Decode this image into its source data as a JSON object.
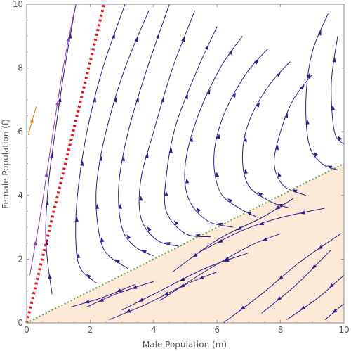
{
  "chart_data": {
    "type": "streamplot",
    "xlabel": "Male Population (m)",
    "ylabel": "Female Population (f)",
    "xlim": [
      0,
      10
    ],
    "ylim": [
      0,
      10
    ],
    "xticks": [
      "0",
      "2",
      "4",
      "6",
      "8",
      "10"
    ],
    "yticks": [
      "0",
      "2",
      "4",
      "6",
      "8",
      "10"
    ],
    "shaded_region": {
      "description_boundary": "f = 0.5 m",
      "fill_color": "#fde9d8"
    },
    "reference_lines": [
      {
        "style": "dotted",
        "color": "#e8141b",
        "slope": 4.1,
        "intercept": 0
      },
      {
        "style": "dotted",
        "color": "#5aa63a",
        "slope": 0.5,
        "intercept": 0
      }
    ],
    "stream_color": "#2b1e8c",
    "highlight_stream_colors": [
      "#8e44ad",
      "#e07b17"
    ],
    "streamlines_upper": [
      [
        [
          1.55,
          10.0
        ],
        [
          1.2,
          8.0
        ],
        [
          0.9,
          6.0
        ],
        [
          0.7,
          4.5
        ],
        [
          0.6,
          3.0
        ],
        [
          0.65,
          2.0
        ],
        [
          0.8,
          0.9
        ]
      ],
      [
        [
          3.1,
          10.0
        ],
        [
          2.4,
          8.0
        ],
        [
          1.9,
          6.0
        ],
        [
          1.6,
          4.0
        ],
        [
          1.55,
          2.5
        ],
        [
          1.7,
          1.7
        ],
        [
          2.2,
          1.25
        ]
      ],
      [
        [
          3.85,
          9.8
        ],
        [
          3.1,
          8.0
        ],
        [
          2.5,
          6.0
        ],
        [
          2.2,
          4.3
        ],
        [
          2.25,
          3.0
        ],
        [
          2.5,
          2.2
        ],
        [
          3.2,
          1.7
        ]
      ],
      [
        [
          4.5,
          10.0
        ],
        [
          3.8,
          8.0
        ],
        [
          3.2,
          6.0
        ],
        [
          2.9,
          4.3
        ],
        [
          3.0,
          3.0
        ],
        [
          3.4,
          2.4
        ],
        [
          4.0,
          2.1
        ]
      ],
      [
        [
          5.3,
          9.8
        ],
        [
          4.6,
          8.0
        ],
        [
          4.0,
          6.0
        ],
        [
          3.6,
          4.5
        ],
        [
          3.6,
          3.3
        ],
        [
          4.1,
          2.6
        ],
        [
          4.8,
          2.4
        ]
      ],
      [
        [
          6.0,
          9.3
        ],
        [
          5.4,
          8.0
        ],
        [
          4.7,
          6.2
        ],
        [
          4.4,
          4.6
        ],
        [
          4.4,
          3.5
        ],
        [
          5.0,
          2.8
        ],
        [
          5.8,
          2.7
        ]
      ],
      [
        [
          6.8,
          9.0
        ],
        [
          6.1,
          8.0
        ],
        [
          5.4,
          6.5
        ],
        [
          5.0,
          5.0
        ],
        [
          5.1,
          3.9
        ],
        [
          5.7,
          3.2
        ],
        [
          6.5,
          3.0
        ]
      ],
      [
        [
          7.6,
          8.6
        ],
        [
          6.9,
          7.8
        ],
        [
          6.2,
          6.5
        ],
        [
          5.9,
          5.2
        ],
        [
          6.1,
          4.1
        ],
        [
          6.7,
          3.6
        ],
        [
          7.3,
          3.3
        ]
      ],
      [
        [
          8.3,
          8.2
        ],
        [
          7.6,
          7.4
        ],
        [
          7.0,
          6.3
        ],
        [
          6.8,
          5.2
        ],
        [
          7.0,
          4.3
        ],
        [
          7.7,
          3.8
        ],
        [
          8.3,
          3.6
        ]
      ],
      [
        [
          9.0,
          7.8
        ],
        [
          8.4,
          7.0
        ],
        [
          8.0,
          6.0
        ],
        [
          7.8,
          5.0
        ],
        [
          8.1,
          4.3
        ],
        [
          8.8,
          4.0
        ]
      ],
      [
        [
          9.5,
          9.7
        ],
        [
          9.0,
          8.5
        ],
        [
          8.8,
          7.0
        ],
        [
          8.9,
          5.6
        ],
        [
          9.3,
          5.0
        ],
        [
          9.8,
          4.8
        ]
      ],
      [
        [
          9.8,
          9.0
        ],
        [
          9.6,
          7.5
        ],
        [
          9.7,
          6.0
        ],
        [
          10.0,
          5.6
        ]
      ]
    ],
    "streamlines_lower": [
      [
        [
          1.9,
          0.5
        ],
        [
          2.8,
          0.9
        ],
        [
          4.0,
          1.3
        ]
      ],
      [
        [
          2.6,
          0.1
        ],
        [
          3.8,
          0.6
        ],
        [
          5.0,
          1.2
        ],
        [
          6.0,
          1.6
        ]
      ],
      [
        [
          3.0,
          0.4
        ],
        [
          4.2,
          1.0
        ],
        [
          5.6,
          1.7
        ],
        [
          7.0,
          2.2
        ]
      ],
      [
        [
          4.2,
          0.7
        ],
        [
          5.6,
          1.6
        ],
        [
          7.0,
          2.4
        ],
        [
          8.0,
          2.8
        ]
      ],
      [
        [
          5.4,
          2.2
        ],
        [
          6.8,
          2.9
        ],
        [
          8.0,
          3.3
        ],
        [
          9.4,
          3.6
        ]
      ],
      [
        [
          4.6,
          1.6
        ],
        [
          6.0,
          2.6
        ],
        [
          7.4,
          3.3
        ],
        [
          8.4,
          3.9
        ]
      ],
      [
        [
          6.2,
          0.0
        ],
        [
          7.4,
          0.9
        ],
        [
          8.6,
          1.9
        ],
        [
          9.9,
          2.8
        ]
      ],
      [
        [
          7.4,
          0.3
        ],
        [
          8.5,
          1.2
        ],
        [
          9.6,
          2.3
        ]
      ],
      [
        [
          8.2,
          0.1
        ],
        [
          9.2,
          0.8
        ],
        [
          10.0,
          1.5
        ]
      ],
      [
        [
          9.4,
          0.1
        ],
        [
          10.0,
          0.6
        ]
      ],
      [
        [
          1.4,
          0.5
        ],
        [
          2.4,
          0.8
        ],
        [
          3.4,
          1.2
        ]
      ]
    ],
    "streamlines_highlight": [
      [
        [
          0.1,
          1.5
        ],
        [
          0.45,
          3.5
        ],
        [
          0.8,
          5.8
        ],
        [
          1.15,
          8.0
        ],
        [
          1.5,
          9.8
        ]
      ],
      [
        [
          0.05,
          5.9
        ],
        [
          0.3,
          6.8
        ]
      ]
    ]
  }
}
